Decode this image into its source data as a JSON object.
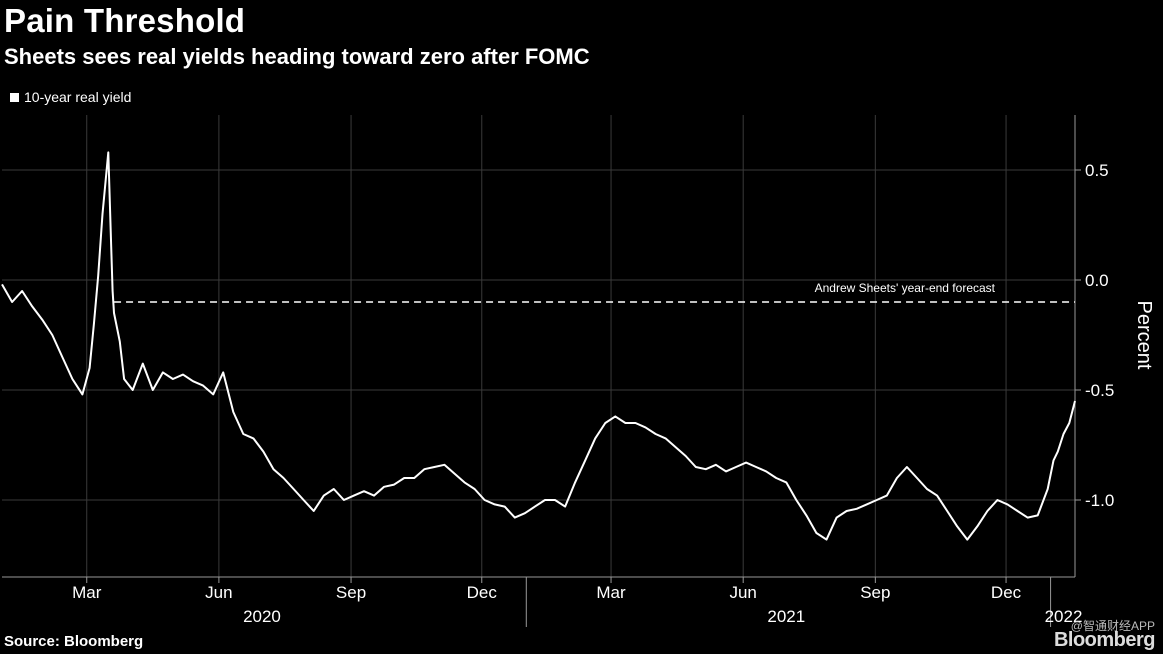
{
  "header": {
    "title": "Pain Threshold",
    "subtitle": "Sheets sees real yields heading toward zero after FOMC"
  },
  "footer": {
    "source": "Source: Bloomberg",
    "brand": "Bloomberg",
    "watermark": "@智通财经APP"
  },
  "colors": {
    "background": "#000000",
    "line": "#ffffff",
    "grid": "#3a3a3a",
    "text": "#ffffff"
  },
  "chart_data": {
    "type": "line",
    "title": "Pain Threshold",
    "subtitle": "Sheets sees real yields heading toward zero after FOMC",
    "ylabel": "Percent",
    "ylim": [
      -1.35,
      0.75
    ],
    "yticks": [
      0.5,
      0.0,
      -0.5,
      -1.0
    ],
    "ytick_labels": [
      "0.5",
      "0.0",
      "-0.5",
      "-1.0"
    ],
    "xlim": [
      "2020-01-02",
      "2022-01-18"
    ],
    "month_ticks": [
      {
        "date": "2020-03-01",
        "label": "Mar"
      },
      {
        "date": "2020-06-01",
        "label": "Jun"
      },
      {
        "date": "2020-09-01",
        "label": "Sep"
      },
      {
        "date": "2020-12-01",
        "label": "Dec"
      },
      {
        "date": "2021-03-01",
        "label": "Mar"
      },
      {
        "date": "2021-06-01",
        "label": "Jun"
      },
      {
        "date": "2021-09-01",
        "label": "Sep"
      },
      {
        "date": "2021-12-01",
        "label": "Dec"
      }
    ],
    "year_labels": [
      {
        "date": "2020-07-01",
        "label": "2020"
      },
      {
        "date": "2021-07-01",
        "label": "2021"
      },
      {
        "date": "2022-01-10",
        "label": "2022"
      }
    ],
    "year_dividers": [
      "2021-01-01",
      "2022-01-01"
    ],
    "legend": {
      "position": "top-left",
      "entries": [
        "10-year real yield"
      ]
    },
    "grid": true,
    "annotations": [
      {
        "text": "Andrew Sheets' year-end forecast",
        "value": -0.1,
        "start": "2020-03-20",
        "style": "dashed"
      }
    ],
    "series": [
      {
        "name": "10-year real yield",
        "dates": [
          "2020-01-02",
          "2020-01-09",
          "2020-01-16",
          "2020-01-23",
          "2020-01-30",
          "2020-02-06",
          "2020-02-13",
          "2020-02-20",
          "2020-02-27",
          "2020-03-03",
          "2020-03-06",
          "2020-03-09",
          "2020-03-12",
          "2020-03-16",
          "2020-03-18",
          "2020-03-19",
          "2020-03-20",
          "2020-03-24",
          "2020-03-27",
          "2020-04-02",
          "2020-04-09",
          "2020-04-16",
          "2020-04-23",
          "2020-04-30",
          "2020-05-07",
          "2020-05-14",
          "2020-05-21",
          "2020-05-28",
          "2020-06-04",
          "2020-06-11",
          "2020-06-18",
          "2020-06-25",
          "2020-07-02",
          "2020-07-09",
          "2020-07-16",
          "2020-07-23",
          "2020-07-30",
          "2020-08-06",
          "2020-08-13",
          "2020-08-20",
          "2020-08-27",
          "2020-09-03",
          "2020-09-10",
          "2020-09-17",
          "2020-09-24",
          "2020-10-01",
          "2020-10-08",
          "2020-10-15",
          "2020-10-22",
          "2020-10-29",
          "2020-11-05",
          "2020-11-12",
          "2020-11-19",
          "2020-11-26",
          "2020-12-03",
          "2020-12-10",
          "2020-12-17",
          "2020-12-24",
          "2020-12-31",
          "2021-01-07",
          "2021-01-14",
          "2021-01-21",
          "2021-01-28",
          "2021-02-04",
          "2021-02-11",
          "2021-02-18",
          "2021-02-25",
          "2021-03-04",
          "2021-03-11",
          "2021-03-18",
          "2021-03-25",
          "2021-04-01",
          "2021-04-08",
          "2021-04-15",
          "2021-04-22",
          "2021-04-29",
          "2021-05-06",
          "2021-05-13",
          "2021-05-20",
          "2021-05-27",
          "2021-06-03",
          "2021-06-10",
          "2021-06-17",
          "2021-06-24",
          "2021-07-01",
          "2021-07-08",
          "2021-07-15",
          "2021-07-22",
          "2021-07-29",
          "2021-08-05",
          "2021-08-12",
          "2021-08-19",
          "2021-08-26",
          "2021-09-02",
          "2021-09-09",
          "2021-09-16",
          "2021-09-23",
          "2021-09-30",
          "2021-10-07",
          "2021-10-14",
          "2021-10-21",
          "2021-10-28",
          "2021-11-04",
          "2021-11-11",
          "2021-11-18",
          "2021-11-25",
          "2021-12-02",
          "2021-12-09",
          "2021-12-16",
          "2021-12-23",
          "2021-12-30",
          "2022-01-03",
          "2022-01-06",
          "2022-01-10",
          "2022-01-14",
          "2022-01-18"
        ],
        "values": [
          -0.02,
          -0.1,
          -0.05,
          -0.12,
          -0.18,
          -0.25,
          -0.35,
          -0.45,
          -0.52,
          -0.4,
          -0.2,
          0.02,
          0.3,
          0.58,
          0.15,
          -0.05,
          -0.15,
          -0.28,
          -0.45,
          -0.5,
          -0.38,
          -0.5,
          -0.42,
          -0.45,
          -0.43,
          -0.46,
          -0.48,
          -0.52,
          -0.42,
          -0.6,
          -0.7,
          -0.72,
          -0.78,
          -0.86,
          -0.9,
          -0.95,
          -1.0,
          -1.05,
          -0.98,
          -0.95,
          -1.0,
          -0.98,
          -0.96,
          -0.98,
          -0.94,
          -0.93,
          -0.9,
          -0.9,
          -0.86,
          -0.85,
          -0.84,
          -0.88,
          -0.92,
          -0.95,
          -1.0,
          -1.02,
          -1.03,
          -1.08,
          -1.06,
          -1.03,
          -1.0,
          -1.0,
          -1.03,
          -0.92,
          -0.82,
          -0.72,
          -0.65,
          -0.62,
          -0.65,
          -0.65,
          -0.67,
          -0.7,
          -0.72,
          -0.76,
          -0.8,
          -0.85,
          -0.86,
          -0.84,
          -0.87,
          -0.85,
          -0.83,
          -0.85,
          -0.87,
          -0.9,
          -0.92,
          -1.0,
          -1.07,
          -1.15,
          -1.18,
          -1.08,
          -1.05,
          -1.04,
          -1.02,
          -1.0,
          -0.98,
          -0.9,
          -0.85,
          -0.9,
          -0.95,
          -0.98,
          -1.05,
          -1.12,
          -1.18,
          -1.12,
          -1.05,
          -1.0,
          -1.02,
          -1.05,
          -1.08,
          -1.07,
          -0.95,
          -0.82,
          -0.78,
          -0.7,
          -0.65,
          -0.55
        ]
      }
    ]
  }
}
